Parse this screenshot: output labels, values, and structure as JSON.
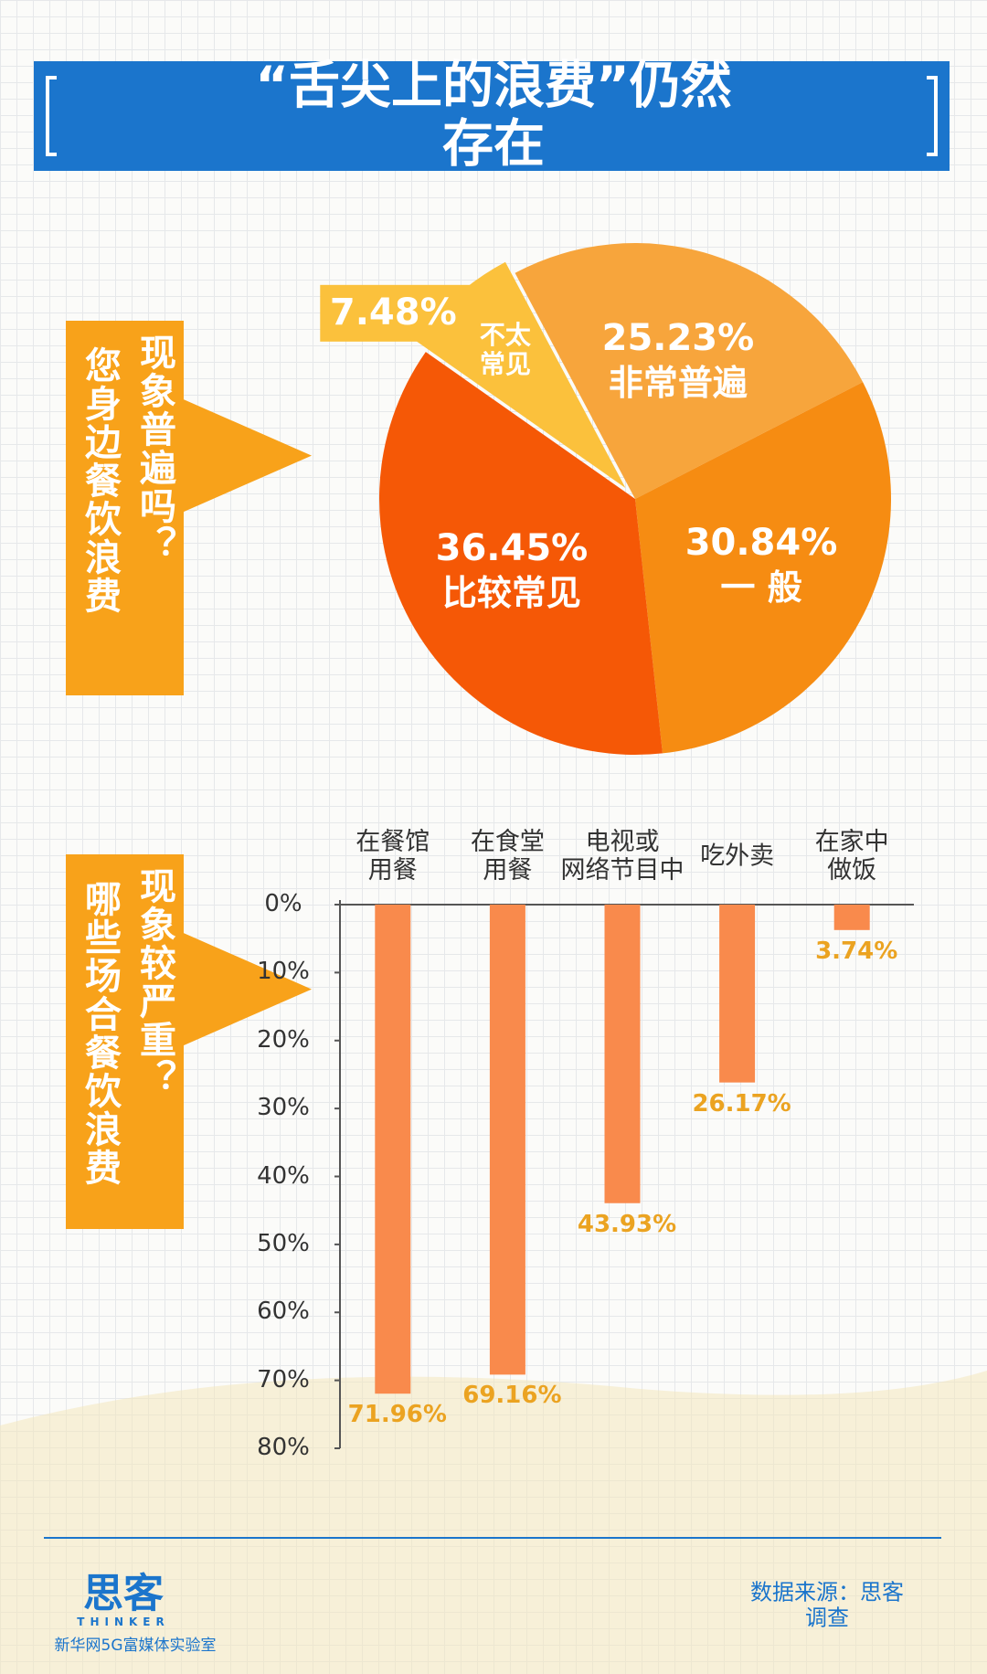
{
  "header": {
    "title": "“舌尖上的浪费”仍然存在"
  },
  "chart_data": [
    {
      "type": "pie",
      "question": [
        "您身边餐饮浪费",
        "现象普遍吗？"
      ],
      "categories": [
        "非常普遍",
        "一 般",
        "比较常见",
        "不太\n常见"
      ],
      "values": [
        25.23,
        30.84,
        36.45,
        7.48
      ],
      "value_labels": [
        "25.23%",
        "30.84%",
        "36.45%",
        "7.48%"
      ],
      "colors": [
        "#f7a53c",
        "#f68c12",
        "#f55806",
        "#fbc13c"
      ]
    },
    {
      "type": "bar",
      "question": [
        "哪些场合餐饮浪费",
        "现象较严重？"
      ],
      "categories": [
        "在餐馆\n用餐",
        "在食堂\n用餐",
        "电视或\n网络节目中",
        "吃外卖",
        "在家中\n做饭"
      ],
      "values": [
        71.96,
        69.16,
        43.93,
        26.17,
        3.74
      ],
      "value_labels": [
        "71.96%",
        "69.16%",
        "43.93%",
        "26.17%",
        "3.74%"
      ],
      "color": "#f98a4c",
      "label_color": "#eba321",
      "ylim": [
        0,
        80
      ],
      "yticks": [
        {
          "value": 0,
          "label": "0%"
        },
        {
          "value": 10,
          "label": "10%"
        },
        {
          "value": 20,
          "label": "20%"
        },
        {
          "value": 30,
          "label": "30%"
        },
        {
          "value": 40,
          "label": "40%"
        },
        {
          "value": 50,
          "label": "50%"
        },
        {
          "value": 60,
          "label": "60%"
        },
        {
          "value": 70,
          "label": "70%"
        },
        {
          "value": 80,
          "label": "80%"
        }
      ]
    }
  ],
  "footer": {
    "logo": "思客",
    "logo_sub": "THINKER",
    "org": "新华网5G富媒体实验室",
    "source": "数据来源：思客调查"
  }
}
